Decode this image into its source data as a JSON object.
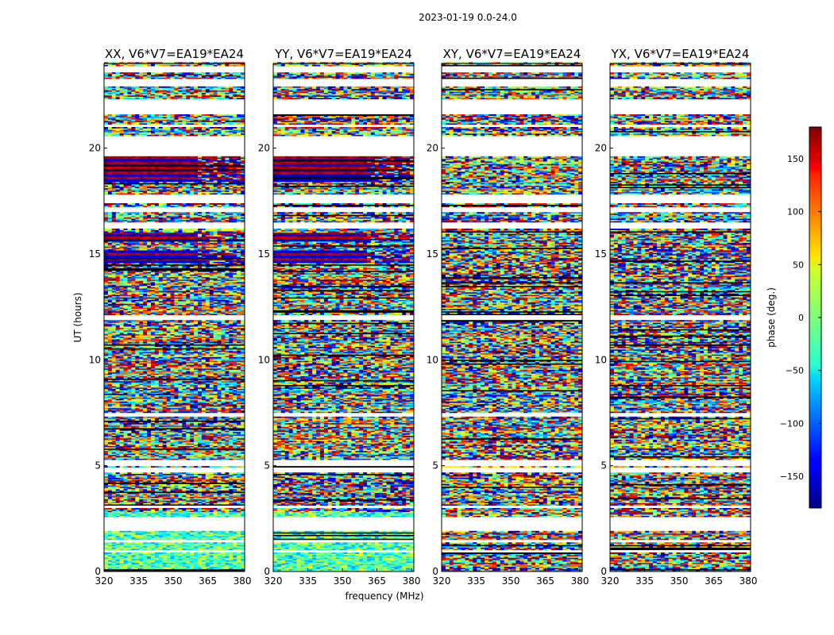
{
  "chart_data": {
    "type": "heatmap",
    "suptitle": "2023-01-19 0.0-24.0",
    "xlabel": "frequency (MHz)",
    "ylabel": "UT (hours)",
    "xlim": [
      320,
      381
    ],
    "ylim": [
      0,
      24
    ],
    "xticks": [
      320,
      335,
      350,
      365,
      380
    ],
    "yticks": [
      0,
      5,
      10,
      15,
      20
    ],
    "panels": [
      {
        "title": "XX, V6*V7=EA19*EA24",
        "pol": "XX"
      },
      {
        "title": "YY, V6*V7=EA19*EA24",
        "pol": "YY"
      },
      {
        "title": "XY, V6*V7=EA19*EA24",
        "pol": "XY"
      },
      {
        "title": "YX, V6*V7=EA19*EA24",
        "pol": "YX"
      }
    ],
    "colorbar": {
      "label": "phase (deg.)",
      "range": [
        -180,
        180
      ],
      "ticks": [
        150,
        100,
        50,
        0,
        -50,
        -100,
        -150
      ],
      "tick_labels": [
        "150",
        "100",
        "50",
        "0",
        "−50",
        "−100",
        "−150"
      ],
      "colormap": "jet"
    },
    "blank_hours": [
      [
        0.9,
        1.0
      ],
      [
        1.4,
        1.5
      ],
      [
        1.9,
        2.6
      ],
      [
        3.0,
        3.1
      ],
      [
        4.7,
        4.9
      ],
      [
        5.0,
        5.3
      ],
      [
        7.3,
        7.5
      ],
      [
        11.9,
        12.1
      ],
      [
        16.2,
        16.5
      ],
      [
        17.0,
        17.2
      ],
      [
        17.4,
        17.8
      ],
      [
        19.6,
        20.6
      ],
      [
        21.0,
        21.1
      ],
      [
        21.6,
        22.3
      ],
      [
        22.9,
        23.3
      ],
      [
        23.6,
        23.9
      ]
    ],
    "coherent_phase_blocks": [
      {
        "hours": [
          18.4,
          19.6
        ],
        "pols": [
          "XX",
          "YY"
        ]
      },
      {
        "hours": [
          14.6,
          15.2
        ],
        "pols": [
          "XX",
          "YY"
        ]
      },
      {
        "hours": [
          15.6,
          16.0
        ],
        "pols": [
          "XX",
          "YY"
        ]
      }
    ]
  }
}
